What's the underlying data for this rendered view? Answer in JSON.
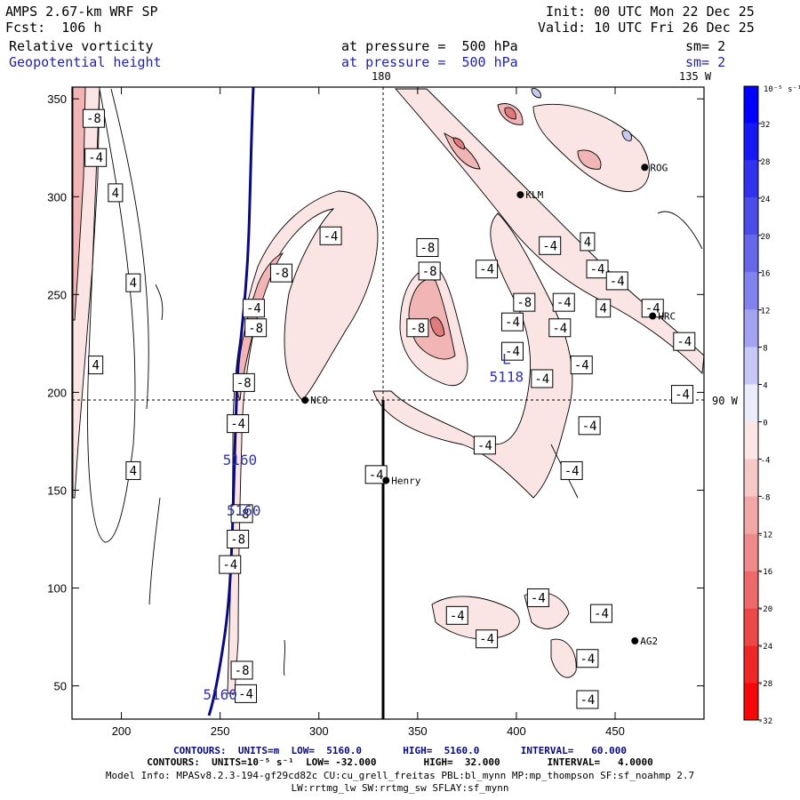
{
  "header": {
    "model": "AMPS 2.67-km WRF SP",
    "fcst": "Fcst:  106 h",
    "init": "Init: 00 UTC Mon 22 Dec 25",
    "valid": "Valid: 10 UTC Fri 26 Dec 25",
    "field1_name": "Relative vorticity",
    "field1_level": "at pressure =  500 hPa",
    "field1_sm": "sm= 2",
    "field2_name": "Geopotential height",
    "field2_level": "at pressure =  500 hPa",
    "field2_sm": "sm= 2",
    "lon_top_180": "180",
    "lon_top_135w": "135 W",
    "lon_right_90w": "90 W"
  },
  "colors": {
    "height_contour": "#0a0a80",
    "neg_light": "#fbe4e4",
    "neg_mid": "#f2b5b5",
    "neg_dark": "#e07b7b",
    "pos_light": "#c8c8f0",
    "label_blue": "#3333aa"
  },
  "chart_data": {
    "type": "contour",
    "title": "Relative vorticity / Geopotential height at 500 hPa",
    "x_ticks": [
      200,
      250,
      300,
      350,
      400,
      450
    ],
    "y_ticks": [
      50,
      100,
      150,
      200,
      250,
      300,
      350
    ],
    "xlim": [
      175,
      495
    ],
    "ylim": [
      33,
      356
    ],
    "height_labels": [
      {
        "text": "5160",
        "x": 260,
        "y": 163
      },
      {
        "text": "5160",
        "x": 262,
        "y": 137
      },
      {
        "text": "5160",
        "x": 250,
        "y": 43
      }
    ],
    "low_center": {
      "symbol": "L",
      "value": "5118",
      "x": 395,
      "y": 210
    },
    "vorticity_labels": [
      {
        "t": "-8",
        "x": 186,
        "y": 340
      },
      {
        "t": "-4",
        "x": 187,
        "y": 320
      },
      {
        "t": "4",
        "x": 197,
        "y": 302
      },
      {
        "t": "4",
        "x": 206,
        "y": 256
      },
      {
        "t": "4",
        "x": 187,
        "y": 214
      },
      {
        "t": "4",
        "x": 206,
        "y": 160
      },
      {
        "t": "-4",
        "x": 306,
        "y": 280
      },
      {
        "t": "-8",
        "x": 281,
        "y": 261
      },
      {
        "t": "-4",
        "x": 267,
        "y": 243
      },
      {
        "t": "-8",
        "x": 268,
        "y": 233
      },
      {
        "t": "-8",
        "x": 262,
        "y": 205
      },
      {
        "t": "-4",
        "x": 259,
        "y": 184
      },
      {
        "t": "-8",
        "x": 355,
        "y": 274
      },
      {
        "t": "-8",
        "x": 356,
        "y": 262
      },
      {
        "t": "-8",
        "x": 350,
        "y": 233
      },
      {
        "t": "-4",
        "x": 385,
        "y": 263
      },
      {
        "t": "-4",
        "x": 417,
        "y": 275
      },
      {
        "t": "4",
        "x": 436,
        "y": 277
      },
      {
        "t": "-4",
        "x": 441,
        "y": 263
      },
      {
        "t": "-4",
        "x": 451,
        "y": 257
      },
      {
        "t": "-8",
        "x": 404,
        "y": 246
      },
      {
        "t": "-4",
        "x": 424,
        "y": 246
      },
      {
        "t": "4",
        "x": 444,
        "y": 243
      },
      {
        "t": "-4",
        "x": 469,
        "y": 243
      },
      {
        "t": "-4",
        "x": 398,
        "y": 236
      },
      {
        "t": "-4",
        "x": 422,
        "y": 233
      },
      {
        "t": "-4",
        "x": 485,
        "y": 226
      },
      {
        "t": "-4",
        "x": 398,
        "y": 221
      },
      {
        "t": "-4",
        "x": 433,
        "y": 214
      },
      {
        "t": "-4",
        "x": 413,
        "y": 207
      },
      {
        "t": "-4",
        "x": 484,
        "y": 199
      },
      {
        "t": "-4",
        "x": 437,
        "y": 183
      },
      {
        "t": "-4",
        "x": 384,
        "y": 173
      },
      {
        "t": "-4",
        "x": 329,
        "y": 158
      },
      {
        "t": "-4",
        "x": 428,
        "y": 160
      },
      {
        "t": "-8",
        "x": 261,
        "y": 138
      },
      {
        "t": "-8",
        "x": 259,
        "y": 125
      },
      {
        "t": "-4",
        "x": 255,
        "y": 112
      },
      {
        "t": "-4",
        "x": 411,
        "y": 95
      },
      {
        "t": "-4",
        "x": 370,
        "y": 86
      },
      {
        "t": "-4",
        "x": 443,
        "y": 87
      },
      {
        "t": "-4",
        "x": 385,
        "y": 74
      },
      {
        "t": "-4",
        "x": 436,
        "y": 64
      },
      {
        "t": "-4",
        "x": 263,
        "y": 46
      },
      {
        "t": "-8",
        "x": 261,
        "y": 58
      },
      {
        "t": "-4",
        "x": 436,
        "y": 43
      }
    ],
    "stations": [
      {
        "name": "NCO",
        "x": 293,
        "y": 196
      },
      {
        "name": "Henry",
        "x": 334,
        "y": 155
      },
      {
        "name": "KLM",
        "x": 402,
        "y": 301
      },
      {
        "name": "ROG",
        "x": 465,
        "y": 315
      },
      {
        "name": "HRC",
        "x": 469,
        "y": 239
      },
      {
        "name": "AG2",
        "x": 460,
        "y": 73
      }
    ],
    "colorbar": {
      "unit": "10⁻⁵ s⁻¹",
      "ticks": [
        32,
        28,
        24,
        20,
        16,
        12,
        8,
        4,
        0,
        -4,
        -8,
        -12,
        -16,
        -20,
        -24,
        -28,
        -32
      ],
      "colors": [
        "#0000ff",
        "#1818f4",
        "#3232ee",
        "#4c4ce8",
        "#6767ea",
        "#8282ee",
        "#a3a3f2",
        "#c8c8f8",
        "#ececfc",
        "#fce6e6",
        "#f7c8c8",
        "#f3a8a8",
        "#ef8a8a",
        "#ed6a6a",
        "#ec4848",
        "#ef2626",
        "#f70808"
      ]
    }
  },
  "footer": {
    "line1": "CONTOURS:  UNITS=m  LOW=  5160.0       HIGH=  5160.0       INTERVAL=   60.000",
    "line2": "CONTOURS:  UNITS=10⁻⁵ s⁻¹  LOW= -32.000        HIGH=  32.000        INTERVAL=   4.0000",
    "line3": "Model Info: MPASv8.2.3-194-gf29cd82c CU:cu_grell_freitas PBL:bl_mynn MP:mp_thompson SF:sf_noahmp 2.7",
    "line4": "LW:rrtmg_lw SW:rrtmg_sw SFLAY:sf_mynn"
  }
}
